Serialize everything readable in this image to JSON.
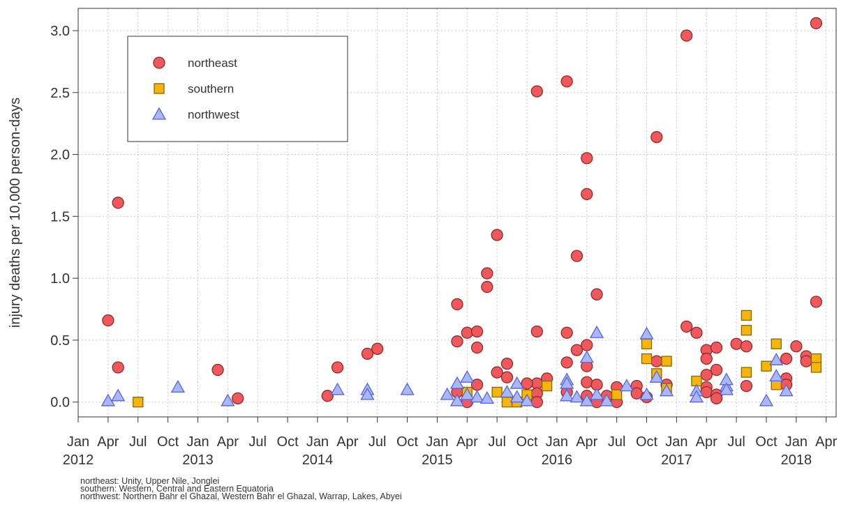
{
  "chart_data": {
    "type": "scatter",
    "y_label": "injury deaths per 10,000 person-days",
    "xlim": [
      "2012-01",
      "2018-05"
    ],
    "ylim": [
      -0.12,
      3.18
    ],
    "yticks": [
      {
        "value": 0,
        "label": "0.0"
      },
      0.5,
      {
        "value": 1,
        "label": "1.0"
      },
      1.5,
      {
        "value": 2,
        "label": "2.0"
      },
      2.5,
      {
        "value": 3,
        "label": "3.0"
      }
    ],
    "xticks": [
      {
        "value": "2012-01",
        "label": "Jan"
      },
      {
        "value": "2012-04",
        "label": "Apr"
      },
      {
        "value": "2012-07",
        "label": "Jul"
      },
      {
        "value": "2012-10",
        "label": "Oct"
      },
      {
        "value": "2013-01",
        "label": "Jan"
      },
      {
        "value": "2013-04",
        "label": "Apr"
      },
      {
        "value": "2013-07",
        "label": "Jul"
      },
      {
        "value": "2013-10",
        "label": "Oct"
      },
      {
        "value": "2014-01",
        "label": "Jan"
      },
      {
        "value": "2014-04",
        "label": "Apr"
      },
      {
        "value": "2014-07",
        "label": "Jul"
      },
      {
        "value": "2014-10",
        "label": "Oct"
      },
      {
        "value": "2015-01",
        "label": "Jan"
      },
      {
        "value": "2015-04",
        "label": "Apr"
      },
      {
        "value": "2015-07",
        "label": "Jul"
      },
      {
        "value": "2015-10",
        "label": "Oct"
      },
      {
        "value": "2016-01",
        "label": "Jan"
      },
      {
        "value": "2016-04",
        "label": "Apr"
      },
      {
        "value": "2016-07",
        "label": "Jul"
      },
      {
        "value": "2016-10",
        "label": "Oct"
      },
      {
        "value": "2017-01",
        "label": "Jan"
      },
      {
        "value": "2017-04",
        "label": "Apr"
      },
      {
        "value": "2017-07",
        "label": "Jul"
      },
      {
        "value": "2017-10",
        "label": "Oct"
      },
      {
        "value": "2018-01",
        "label": "Jan"
      },
      {
        "value": "2018-04",
        "label": "Apr"
      }
    ],
    "xticks_year": [
      {
        "value": "2012-01",
        "label": "2012"
      },
      {
        "value": "2013-01",
        "label": "2013"
      },
      {
        "value": "2014-01",
        "label": "2014"
      },
      {
        "value": "2015-01",
        "label": "2015"
      },
      {
        "value": "2016-01",
        "label": "2016"
      },
      {
        "value": "2017-01",
        "label": "2017"
      },
      {
        "value": "2018-01",
        "label": "2018"
      }
    ],
    "grid": true,
    "legend": "top-left",
    "series": [
      {
        "name": "northeast",
        "marker": "circle",
        "color": "#f0585c",
        "edge": "#8c2a2a",
        "x": [
          "2012-04",
          "2012-05",
          "2012-05",
          "2013-03",
          "2013-05",
          "2014-02",
          "2014-03",
          "2014-06",
          "2014-07",
          "2015-03",
          "2015-03",
          "2015-03",
          "2015-04",
          "2015-04",
          "2015-05",
          "2015-05",
          "2015-05",
          "2015-06",
          "2015-06",
          "2015-07",
          "2015-07",
          "2015-08",
          "2015-08",
          "2015-11",
          "2015-11",
          "2015-11",
          "2015-11",
          "2015-11",
          "2015-10",
          "2015-12",
          "2016-02",
          "2016-02",
          "2016-02",
          "2016-02",
          "2016-03",
          "2016-03",
          "2016-04",
          "2016-04",
          "2016-04",
          "2016-04",
          "2016-04",
          "2016-04",
          "2016-05",
          "2016-05",
          "2016-05",
          "2016-06",
          "2016-07",
          "2016-07",
          "2016-09",
          "2016-09",
          "2016-10",
          "2016-11",
          "2016-11",
          "2016-12",
          "2017-02",
          "2017-02",
          "2017-03",
          "2017-04",
          "2017-04",
          "2017-04",
          "2017-04",
          "2017-04",
          "2017-05",
          "2017-05",
          "2017-05",
          "2017-05",
          "2017-07",
          "2017-08",
          "2017-08",
          "2017-12",
          "2017-12",
          "2017-12",
          "2018-01",
          "2018-02",
          "2018-02",
          "2018-03",
          "2018-03"
        ],
        "values": [
          0.66,
          1.61,
          0.28,
          0.26,
          0.03,
          0.05,
          0.28,
          0.39,
          0.43,
          0.79,
          0.49,
          0.08,
          0.56,
          0.0,
          0.57,
          0.44,
          0.14,
          1.04,
          0.93,
          1.35,
          0.24,
          0.31,
          0.2,
          2.51,
          0.57,
          0.15,
          0.07,
          0.0,
          0.15,
          0.19,
          2.59,
          0.56,
          0.32,
          0.08,
          1.18,
          0.42,
          1.97,
          1.68,
          0.46,
          0.29,
          0.16,
          0.05,
          0.87,
          0.14,
          0.0,
          0.05,
          0.12,
          0.0,
          0.13,
          0.07,
          0.04,
          2.14,
          0.33,
          0.14,
          2.96,
          0.61,
          0.56,
          0.42,
          0.35,
          0.22,
          0.12,
          0.08,
          0.44,
          0.26,
          0.06,
          0.03,
          0.47,
          0.45,
          0.13,
          0.35,
          0.19,
          0.14,
          0.45,
          0.37,
          0.33,
          3.06,
          0.81
        ]
      },
      {
        "name": "southern",
        "marker": "square",
        "color": "#f5b50a",
        "edge": "#8a6400",
        "x": [
          "2012-07",
          "2015-04",
          "2015-07",
          "2015-08",
          "2015-09",
          "2015-10",
          "2015-12",
          "2016-07",
          "2016-10",
          "2016-10",
          "2016-11",
          "2016-12",
          "2016-12",
          "2017-03",
          "2017-08",
          "2017-08",
          "2017-08",
          "2017-10",
          "2017-11",
          "2017-11",
          "2018-03",
          "2018-03"
        ],
        "values": [
          0.0,
          0.08,
          0.08,
          0.0,
          0.0,
          0.06,
          0.13,
          0.06,
          0.47,
          0.35,
          0.23,
          0.33,
          0.11,
          0.17,
          0.7,
          0.58,
          0.24,
          0.29,
          0.47,
          0.14,
          0.35,
          0.28
        ]
      },
      {
        "name": "northwest",
        "marker": "triangle",
        "color": "#a9b7ff",
        "edge": "#5563e0",
        "x": [
          "2012-04",
          "2012-05",
          "2012-11",
          "2013-04",
          "2014-03",
          "2014-06",
          "2014-06",
          "2014-10",
          "2015-02",
          "2015-03",
          "2015-03",
          "2015-04",
          "2015-04",
          "2015-05",
          "2015-06",
          "2015-08",
          "2015-09",
          "2015-09",
          "2015-10",
          "2016-02",
          "2016-02",
          "2016-02",
          "2016-03",
          "2016-04",
          "2016-04",
          "2016-05",
          "2016-05",
          "2016-06",
          "2016-08",
          "2016-10",
          "2016-10",
          "2016-11",
          "2016-12",
          "2017-03",
          "2017-03",
          "2017-06",
          "2017-06",
          "2017-06",
          "2017-10",
          "2017-11",
          "2017-11",
          "2017-12"
        ],
        "values": [
          0.01,
          0.05,
          0.12,
          0.01,
          0.1,
          0.1,
          0.06,
          0.1,
          0.06,
          0.15,
          0.01,
          0.2,
          0.06,
          0.04,
          0.03,
          0.08,
          0.15,
          0.04,
          0.01,
          0.18,
          0.15,
          0.05,
          0.04,
          0.36,
          0.01,
          0.56,
          0.06,
          0.01,
          0.13,
          0.55,
          0.06,
          0.2,
          0.09,
          0.09,
          0.04,
          0.13,
          0.18,
          0.1,
          0.01,
          0.34,
          0.21,
          0.09
        ]
      }
    ],
    "notes": [
      "northeast: Unity, Upper Nile, Jonglei",
      "southern: Western, Central and Eastern Equatoria",
      "northwest: Northern Bahr el Ghazal, Western Bahr el Ghazal, Warrap, Lakes, Abyei"
    ]
  }
}
